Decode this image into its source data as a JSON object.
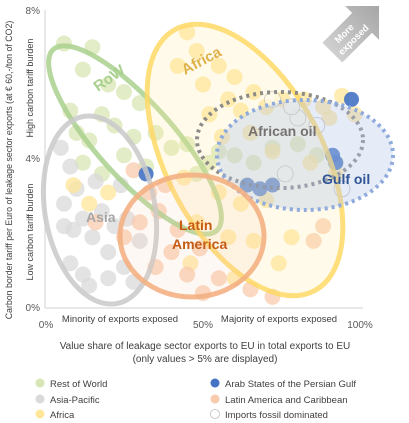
{
  "chart_data": {
    "type": "scatter",
    "title": "",
    "xlabel": "Value share of leakage sector exports to EU in total exports to EU",
    "xlabel_note": "(only values > 5% are displayed)",
    "ylabel": "Carbon border tariff per Euro of leakage sector exports (at € 60,-/ton of CO2)",
    "xlim": [
      0,
      100
    ],
    "ylim": [
      0,
      8
    ],
    "x_unit": "%",
    "y_unit": "%",
    "x_ticks": [
      "0%",
      "50%",
      "100%"
    ],
    "y_ticks": [
      "0%",
      "4%",
      "8%"
    ],
    "x_region_labels": [
      "Minority of exports exposed",
      "Majority of exports exposed"
    ],
    "y_region_labels": [
      "Low carbon tariff burden",
      "High carbon tariff burden"
    ],
    "arrow_label": "More exposed",
    "grid": false,
    "legend_position": "bottom",
    "legend": [
      {
        "name": "Rest of World",
        "color": "#d8e6b3"
      },
      {
        "name": "Arab States of the Persian Gulf",
        "color": "#4472c4"
      },
      {
        "name": "Asia-Pacific",
        "color": "#d9d9d9"
      },
      {
        "name": "Latin America and Caribbean",
        "color": "#f8cbad"
      },
      {
        "name": "Africa",
        "color": "#ffe699"
      },
      {
        "name": "Imports fossil dominated",
        "color": "#ffffff"
      }
    ],
    "groups": [
      {
        "name": "RoW",
        "color": "#70ad47",
        "label_color": "#a9d18e"
      },
      {
        "name": "Africa",
        "color": "#ffc000",
        "label_color": "#dfb14a"
      },
      {
        "name": "African oil",
        "color": "#7f7f7f",
        "label_color": "#767171"
      },
      {
        "name": "Gulf oil",
        "color": "#4472c4",
        "label_color": "#2f5597"
      },
      {
        "name": "Asia",
        "color": "#a6a6a6",
        "label_color": "#a6a6a6"
      },
      {
        "name": "Latin America",
        "color": "#ed7d31",
        "label_color": "#c55a11"
      }
    ],
    "series": [
      {
        "name": "Rest of World",
        "color": "#d8e6b3",
        "points": [
          [
            6,
            7.1
          ],
          [
            15,
            7
          ],
          [
            12,
            6.4
          ],
          [
            20,
            6
          ],
          [
            25,
            5.8
          ],
          [
            30,
            5.5
          ],
          [
            8,
            5.3
          ],
          [
            18,
            5.2
          ],
          [
            22,
            4.9
          ],
          [
            10,
            4.7
          ],
          [
            14,
            4.5
          ],
          [
            28,
            4.6
          ],
          [
            35,
            4.7
          ],
          [
            40,
            4.3
          ],
          [
            45,
            4.4
          ],
          [
            25,
            4.1
          ],
          [
            32,
            3.8
          ],
          [
            12,
            3.9
          ],
          [
            18,
            3.6
          ],
          [
            48,
            3.6
          ],
          [
            52,
            3.9
          ],
          [
            55,
            4.2
          ],
          [
            60,
            4.1
          ],
          [
            66,
            3.9
          ],
          [
            72,
            4.3
          ],
          [
            80,
            4.4
          ],
          [
            86,
            4.1
          ],
          [
            92,
            3.9
          ]
        ]
      },
      {
        "name": "Asia-Pacific",
        "color": "#d9d9d9",
        "points": [
          [
            5,
            4.3
          ],
          [
            8,
            3.8
          ],
          [
            10,
            3.2
          ],
          [
            6,
            2.8
          ],
          [
            12,
            2.4
          ],
          [
            9,
            2.1
          ],
          [
            15,
            1.9
          ],
          [
            18,
            2.6
          ],
          [
            22,
            2.2
          ],
          [
            20,
            1.5
          ],
          [
            25,
            1.1
          ],
          [
            28,
            0.7
          ],
          [
            14,
            0.6
          ],
          [
            8,
            1.2
          ],
          [
            16,
            3.4
          ],
          [
            24,
            3.3
          ],
          [
            26,
            2.4
          ],
          [
            30,
            1.8
          ],
          [
            12,
            0.9
          ],
          [
            20,
            0.8
          ],
          [
            6,
            2.2
          ]
        ]
      },
      {
        "name": "Africa",
        "color": "#ffe699",
        "points": [
          [
            45,
            7.4
          ],
          [
            48,
            6.9
          ],
          [
            42,
            6.5
          ],
          [
            55,
            6.5
          ],
          [
            50,
            6
          ],
          [
            60,
            6.2
          ],
          [
            66,
            5.8
          ],
          [
            58,
            5.6
          ],
          [
            52,
            5.2
          ],
          [
            62,
            5.3
          ],
          [
            70,
            5.4
          ],
          [
            75,
            5.6
          ],
          [
            82,
            5.6
          ],
          [
            88,
            5.4
          ],
          [
            94,
            5.7
          ],
          [
            90,
            5.1
          ],
          [
            98,
            5.2
          ],
          [
            56,
            4.6
          ],
          [
            65,
            4.7
          ],
          [
            72,
            4.2
          ],
          [
            84,
            3.9
          ],
          [
            92,
            3.6
          ],
          [
            44,
            3.5
          ],
          [
            55,
            3.1
          ],
          [
            62,
            2.8
          ],
          [
            70,
            2.9
          ],
          [
            48,
            2.3
          ],
          [
            58,
            1.9
          ],
          [
            66,
            1.8
          ],
          [
            74,
            1.2
          ],
          [
            78,
            1.9
          ],
          [
            60,
            0.8
          ],
          [
            46,
            1.2
          ],
          [
            9,
            3.3
          ],
          [
            14,
            2.8
          ],
          [
            20,
            3.1
          ]
        ]
      },
      {
        "name": "Latin America and Caribbean",
        "color": "#f8cbad",
        "points": [
          [
            28,
            3.7
          ],
          [
            33,
            3.1
          ],
          [
            38,
            3.3
          ],
          [
            36,
            2.6
          ],
          [
            42,
            2.1
          ],
          [
            30,
            2.3
          ],
          [
            40,
            1.5
          ],
          [
            45,
            0.9
          ],
          [
            35,
            1.1
          ],
          [
            49,
            1.6
          ],
          [
            50,
            0.4
          ],
          [
            55,
            0.8
          ],
          [
            65,
            0.5
          ],
          [
            72,
            0.3
          ],
          [
            85,
            1.8
          ],
          [
            88,
            2.2
          ],
          [
            16,
            2.3
          ],
          [
            25,
            1.9
          ]
        ]
      },
      {
        "name": "Arab States of the Persian Gulf",
        "color": "#4472c4",
        "points": [
          [
            97,
            5.6
          ],
          [
            91,
            4.1
          ],
          [
            92,
            3.9
          ],
          [
            64,
            3.3
          ],
          [
            68,
            3.2
          ],
          [
            32,
            3.6
          ],
          [
            72,
            3.3
          ]
        ]
      },
      {
        "name": "Imports fossil dominated",
        "color": "#ffffff",
        "points": [
          [
            72,
            5.6
          ],
          [
            80,
            5.1
          ],
          [
            86,
            4.9
          ],
          [
            76,
            3.6
          ],
          [
            94,
            3.2
          ],
          [
            78,
            5.4
          ]
        ]
      }
    ]
  }
}
